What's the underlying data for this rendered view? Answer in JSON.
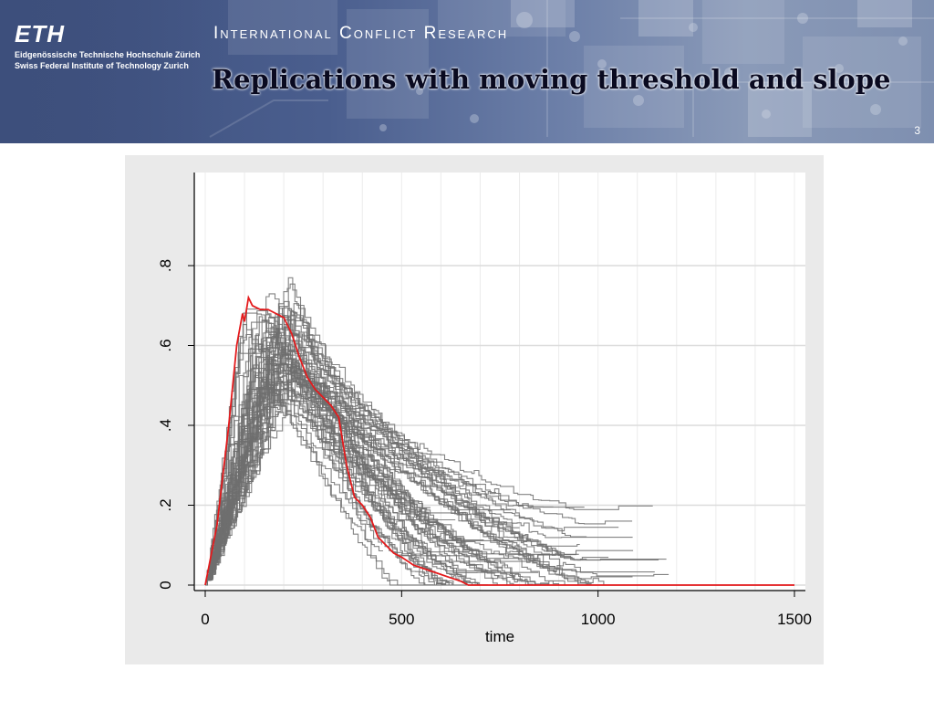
{
  "header": {
    "logo_text": "ETH",
    "institution_line1": "Eidgenössische Technische Hochschule Zürich",
    "institution_line2": "Swiss Federal Institute of Technology Zurich",
    "department": "International Conflict Research",
    "slide_title": "Replications with moving threshold and slope",
    "page_number": "3"
  },
  "colors": {
    "highlight_line": "#e41a1c",
    "replication_lines": "#6e6e6e",
    "plot_background": "#ffffff",
    "frame_background": "#eaeaea"
  },
  "chart_data": {
    "type": "line",
    "title": "",
    "xlabel": "time",
    "ylabel": "",
    "xlim": [
      0,
      1500
    ],
    "ylim": [
      0,
      0.9
    ],
    "x_ticks": [
      0,
      500,
      1000,
      1500
    ],
    "x_tick_labels": [
      "0",
      "500",
      "1000",
      "1500"
    ],
    "y_ticks": [
      0,
      0.2,
      0.4,
      0.6,
      0.8
    ],
    "y_tick_labels": [
      "0",
      ".2",
      ".4",
      ".6",
      ".8"
    ],
    "grid": true,
    "legend": "none",
    "series": [
      {
        "x": [
          0,
          30,
          60,
          80,
          95,
          100,
          110,
          120,
          140,
          160,
          180,
          200,
          220,
          240,
          260,
          280,
          300,
          320,
          340,
          360,
          380,
          400,
          420,
          440,
          460,
          480,
          500,
          530,
          560,
          590,
          620,
          650,
          670,
          700,
          800,
          1000,
          1200,
          1500
        ],
        "y": [
          0.0,
          0.15,
          0.4,
          0.6,
          0.68,
          0.66,
          0.72,
          0.7,
          0.69,
          0.69,
          0.68,
          0.67,
          0.63,
          0.57,
          0.52,
          0.49,
          0.47,
          0.45,
          0.42,
          0.3,
          0.22,
          0.2,
          0.17,
          0.12,
          0.1,
          0.08,
          0.07,
          0.05,
          0.04,
          0.03,
          0.02,
          0.01,
          0.0,
          0.0,
          0.0,
          0.0,
          0.0,
          0.0
        ]
      }
    ]
  }
}
